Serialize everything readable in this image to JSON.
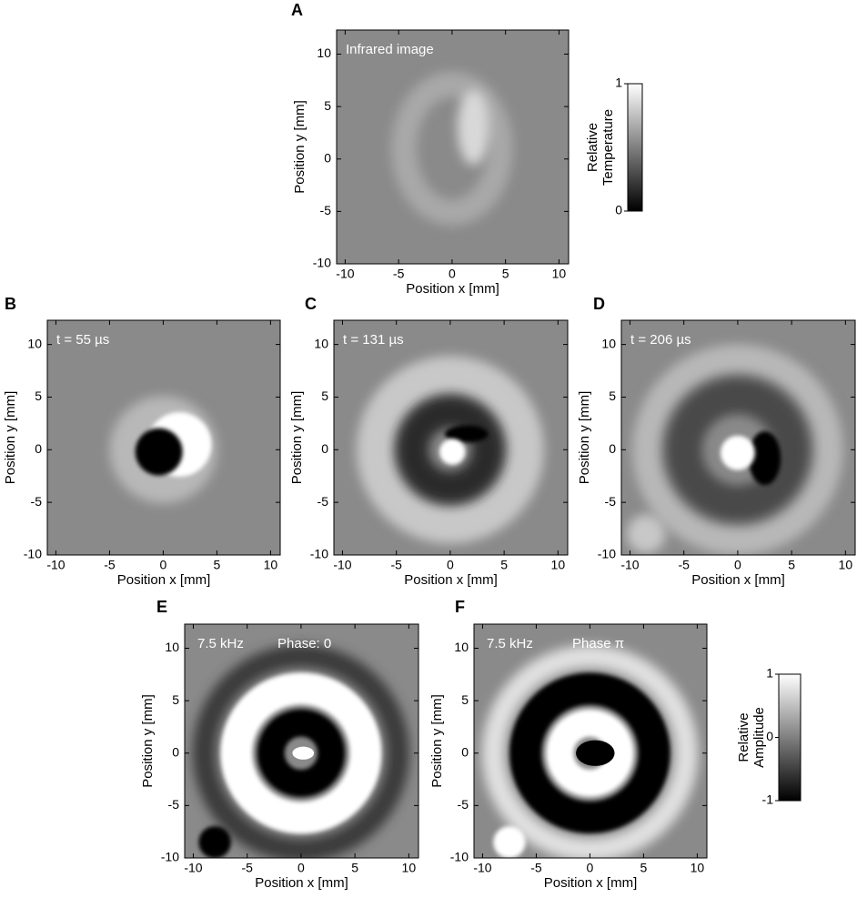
{
  "chart_data": [
    {
      "type": "heatmap",
      "panel_label": "A",
      "annotations": [
        "Infrared image"
      ],
      "xlabel": "Position x [mm]",
      "ylabel": "Position y [mm]",
      "xlim": [
        -10.8,
        10.9
      ],
      "ylim": [
        -10,
        12.3
      ],
      "xticks": [
        -10,
        -5,
        0,
        5,
        10
      ],
      "yticks": [
        -10,
        -5,
        0,
        5,
        10
      ]
    },
    {
      "type": "heatmap",
      "panel_label": "B",
      "annotations": [
        "t = 55 µs"
      ],
      "xlabel": "Position x [mm]",
      "ylabel": "Position y [mm]",
      "xlim": [
        -10.8,
        10.9
      ],
      "ylim": [
        -10,
        12.3
      ],
      "xticks": [
        -10,
        -5,
        0,
        5,
        10
      ],
      "yticks": [
        -10,
        -5,
        0,
        5,
        10
      ]
    },
    {
      "type": "heatmap",
      "panel_label": "C",
      "annotations": [
        "t = 131 µs"
      ],
      "xlabel": "Position x [mm]",
      "ylabel": "Position y [mm]",
      "xlim": [
        -10.8,
        10.9
      ],
      "ylim": [
        -10,
        12.3
      ],
      "xticks": [
        -10,
        -5,
        0,
        5,
        10
      ],
      "yticks": [
        -10,
        -5,
        0,
        5,
        10
      ]
    },
    {
      "type": "heatmap",
      "panel_label": "D",
      "annotations": [
        "t = 206 µs"
      ],
      "xlabel": "Position x [mm]",
      "ylabel": "Position y [mm]",
      "xlim": [
        -10.8,
        10.9
      ],
      "ylim": [
        -10,
        12.3
      ],
      "xticks": [
        -10,
        -5,
        0,
        5,
        10
      ],
      "yticks": [
        -10,
        -5,
        0,
        5,
        10
      ]
    },
    {
      "type": "heatmap",
      "panel_label": "E",
      "annotations": [
        "7.5 kHz",
        "Phase: 0"
      ],
      "xlabel": "Position x [mm]",
      "ylabel": "Position y [mm]",
      "xlim": [
        -10.8,
        10.9
      ],
      "ylim": [
        -10,
        12.3
      ],
      "xticks": [
        -10,
        -5,
        0,
        5,
        10
      ],
      "yticks": [
        -10,
        -5,
        0,
        5,
        10
      ]
    },
    {
      "type": "heatmap",
      "panel_label": "F",
      "annotations": [
        "7.5 kHz",
        "Phase π"
      ],
      "xlabel": "Position x [mm]",
      "ylabel": "Position y [mm]",
      "xlim": [
        -10.8,
        10.9
      ],
      "ylim": [
        -10,
        12.3
      ],
      "xticks": [
        -10,
        -5,
        0,
        5,
        10
      ],
      "yticks": [
        -10,
        -5,
        0,
        5,
        10
      ]
    },
    {
      "type": "colorbar",
      "label": [
        "Relative",
        "Temperature"
      ],
      "lim": [
        0,
        1
      ],
      "ticks": [
        0,
        1
      ]
    },
    {
      "type": "colorbar",
      "label": [
        "Relative",
        "Amplitude"
      ],
      "lim": [
        -1,
        1
      ],
      "ticks": [
        -1,
        0,
        1
      ]
    }
  ]
}
